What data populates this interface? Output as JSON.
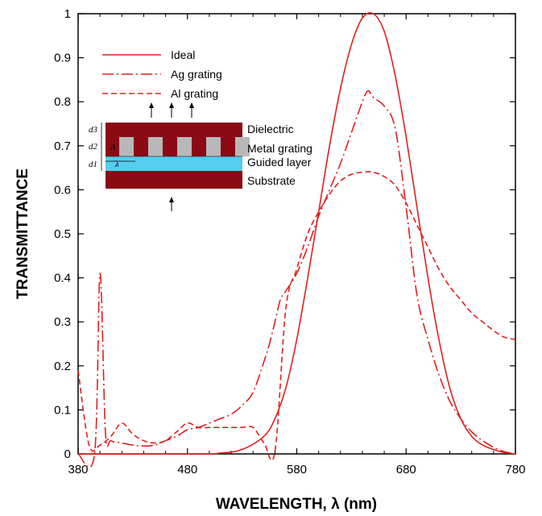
{
  "chart_data": {
    "type": "line",
    "xlabel": "WAVELENGTH, λ (nm)",
    "ylabel": "TRANSMITTANCE",
    "xlim": [
      380,
      780
    ],
    "ylim": [
      0,
      1
    ],
    "x_ticks": [
      "380",
      "480",
      "580",
      "680",
      "780"
    ],
    "y_ticks": [
      "0",
      "0.1",
      "0.2",
      "0.3",
      "0.4",
      "0.5",
      "0.6",
      "0.7",
      "0.8",
      "0.9",
      "1"
    ],
    "line_color": "#e02020",
    "legend_placement": "top-left",
    "series": [
      {
        "name": "Ideal",
        "style": "solid",
        "x": [
          380,
          490,
          510,
          530,
          550,
          560,
          570,
          580,
          590,
          600,
          610,
          620,
          630,
          640,
          650,
          660,
          670,
          680,
          690,
          700,
          710,
          720,
          730,
          740,
          750,
          760,
          770,
          780
        ],
        "y": [
          0,
          0,
          0.002,
          0.01,
          0.04,
          0.08,
          0.15,
          0.26,
          0.4,
          0.55,
          0.7,
          0.83,
          0.93,
          0.99,
          1.0,
          0.96,
          0.86,
          0.72,
          0.56,
          0.4,
          0.26,
          0.15,
          0.08,
          0.04,
          0.02,
          0.01,
          0.003,
          0
        ]
      },
      {
        "name": "Ag grating",
        "style": "dash-dot",
        "x": [
          380,
          395,
          400,
          405,
          410,
          420,
          430,
          440,
          450,
          460,
          470,
          480,
          490,
          500,
          510,
          520,
          530,
          540,
          550,
          555,
          560,
          565,
          570,
          580,
          590,
          600,
          610,
          620,
          630,
          640,
          645,
          650,
          660,
          670,
          680,
          690,
          700,
          710,
          720,
          730,
          740,
          750,
          760,
          770,
          780
        ],
        "y": [
          0,
          0.0,
          0.41,
          0.05,
          0.03,
          0.025,
          0.02,
          0.018,
          0.02,
          0.03,
          0.04,
          0.055,
          0.06,
          0.07,
          0.08,
          0.09,
          0.11,
          0.14,
          0.21,
          0.25,
          0.3,
          0.35,
          0.37,
          0.41,
          0.47,
          0.54,
          0.6,
          0.66,
          0.73,
          0.8,
          0.825,
          0.81,
          0.79,
          0.74,
          0.56,
          0.36,
          0.26,
          0.18,
          0.12,
          0.08,
          0.05,
          0.03,
          0.015,
          0.005,
          0
        ]
      },
      {
        "name": "Al grating",
        "style": "dashed",
        "x": [
          380,
          390,
          400,
          410,
          420,
          430,
          440,
          450,
          460,
          470,
          480,
          490,
          500,
          510,
          520,
          530,
          540,
          550,
          560,
          570,
          580,
          590,
          600,
          610,
          620,
          630,
          640,
          650,
          660,
          670,
          680,
          690,
          700,
          710,
          720,
          730,
          740,
          750,
          760,
          770,
          780
        ],
        "y": [
          0.19,
          0.02,
          0.02,
          0.04,
          0.07,
          0.045,
          0.03,
          0.025,
          0.03,
          0.05,
          0.07,
          0.06,
          0.06,
          0.06,
          0.06,
          0.06,
          0.06,
          0.025,
          0.005,
          0.33,
          0.42,
          0.5,
          0.55,
          0.59,
          0.62,
          0.635,
          0.64,
          0.64,
          0.63,
          0.61,
          0.57,
          0.52,
          0.47,
          0.42,
          0.38,
          0.35,
          0.32,
          0.3,
          0.28,
          0.265,
          0.26
        ]
      }
    ],
    "inset": {
      "labels": [
        "Dielectric",
        "Metal grating",
        "Guided layer",
        "Substrate"
      ],
      "dims": [
        "d3",
        "d2",
        "d1",
        "Λ",
        "λ"
      ],
      "colors": {
        "dielectric": "#8b0a14",
        "metal": "#b8b8b8",
        "guided": "#55ccf0",
        "substrate": "#8b0a14"
      }
    }
  }
}
